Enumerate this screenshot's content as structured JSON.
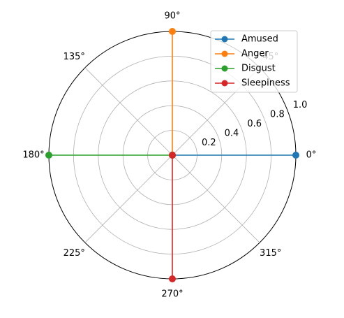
{
  "chart_data": {
    "type": "polar-line",
    "title": "",
    "r_range": [
      0,
      1.0
    ],
    "r_ticks": [
      0.2,
      0.4,
      0.6,
      0.8,
      1.0
    ],
    "r_tick_labels": [
      "0.2",
      "0.4",
      "0.6",
      "0.8",
      "1.0"
    ],
    "theta_ticks_deg": [
      0,
      45,
      90,
      135,
      180,
      225,
      270,
      315
    ],
    "theta_tick_labels": [
      "0°",
      "45°",
      "90°",
      "135°",
      "180°",
      "225°",
      "270°",
      "315°"
    ],
    "grid": true,
    "legend_position": "top-right",
    "series": [
      {
        "name": "Amused",
        "color": "#1f77b4",
        "points": [
          {
            "theta_deg": 0,
            "r": 0
          },
          {
            "theta_deg": 0,
            "r": 1.0
          }
        ]
      },
      {
        "name": "Anger",
        "color": "#ff7f0e",
        "points": [
          {
            "theta_deg": 90,
            "r": 0
          },
          {
            "theta_deg": 90,
            "r": 1.0
          }
        ]
      },
      {
        "name": "Disgust",
        "color": "#2ca02c",
        "points": [
          {
            "theta_deg": 180,
            "r": 0
          },
          {
            "theta_deg": 180,
            "r": 1.0
          }
        ]
      },
      {
        "name": "Sleepiness",
        "color": "#d62728",
        "points": [
          {
            "theta_deg": 270,
            "r": 0
          },
          {
            "theta_deg": 270,
            "r": 1.0
          }
        ]
      }
    ]
  }
}
